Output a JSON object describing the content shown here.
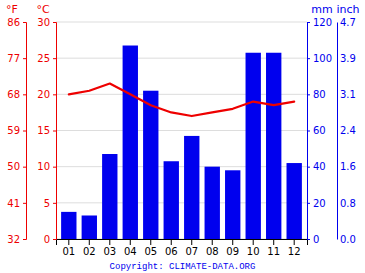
{
  "chart_data": {
    "type": "bar",
    "categories": [
      "01",
      "02",
      "03",
      "04",
      "05",
      "06",
      "07",
      "08",
      "09",
      "10",
      "11",
      "12"
    ],
    "series": [
      {
        "type": "bar",
        "color": "#0000ee",
        "axis": "y2",
        "values": [
          15,
          13,
          47,
          107,
          82,
          43,
          57,
          40,
          38,
          103,
          103,
          42
        ]
      },
      {
        "type": "line",
        "color": "#ee0000",
        "values": [
          20.0,
          20.5,
          21.5,
          20.0,
          18.5,
          17.5,
          17.0,
          17.5,
          18.0,
          19.0,
          18.5,
          19.0
        ]
      }
    ],
    "ylabel": "°C",
    "ylim": [
      0,
      30
    ],
    "yticks": [
      0,
      5,
      10,
      15,
      20,
      25,
      30
    ],
    "y3label": "°F",
    "y3ticks": [
      {
        "value": 0,
        "label": "32"
      },
      {
        "value": 5,
        "label": "41"
      },
      {
        "value": 10,
        "label": "50"
      },
      {
        "value": 15,
        "label": "59"
      },
      {
        "value": 20,
        "label": "68"
      },
      {
        "value": 25,
        "label": "77"
      },
      {
        "value": 30,
        "label": "86"
      }
    ],
    "y2label": "mm",
    "y2lim": [
      0,
      120
    ],
    "y2ticks": [
      0,
      20,
      40,
      60,
      80,
      100,
      120
    ],
    "y4label": "inch",
    "y4ticks": [
      {
        "value": 0,
        "label": "0.0"
      },
      {
        "value": 20,
        "label": "0.8"
      },
      {
        "value": 40,
        "label": "1.6"
      },
      {
        "value": 60,
        "label": "2.4"
      },
      {
        "value": 80,
        "label": "3.1"
      },
      {
        "value": 100,
        "label": "3.9"
      },
      {
        "value": 120,
        "label": "4.7"
      }
    ],
    "grid": true,
    "annotations": [
      "Copyright: CLIMATE-DATA.ORG"
    ]
  }
}
